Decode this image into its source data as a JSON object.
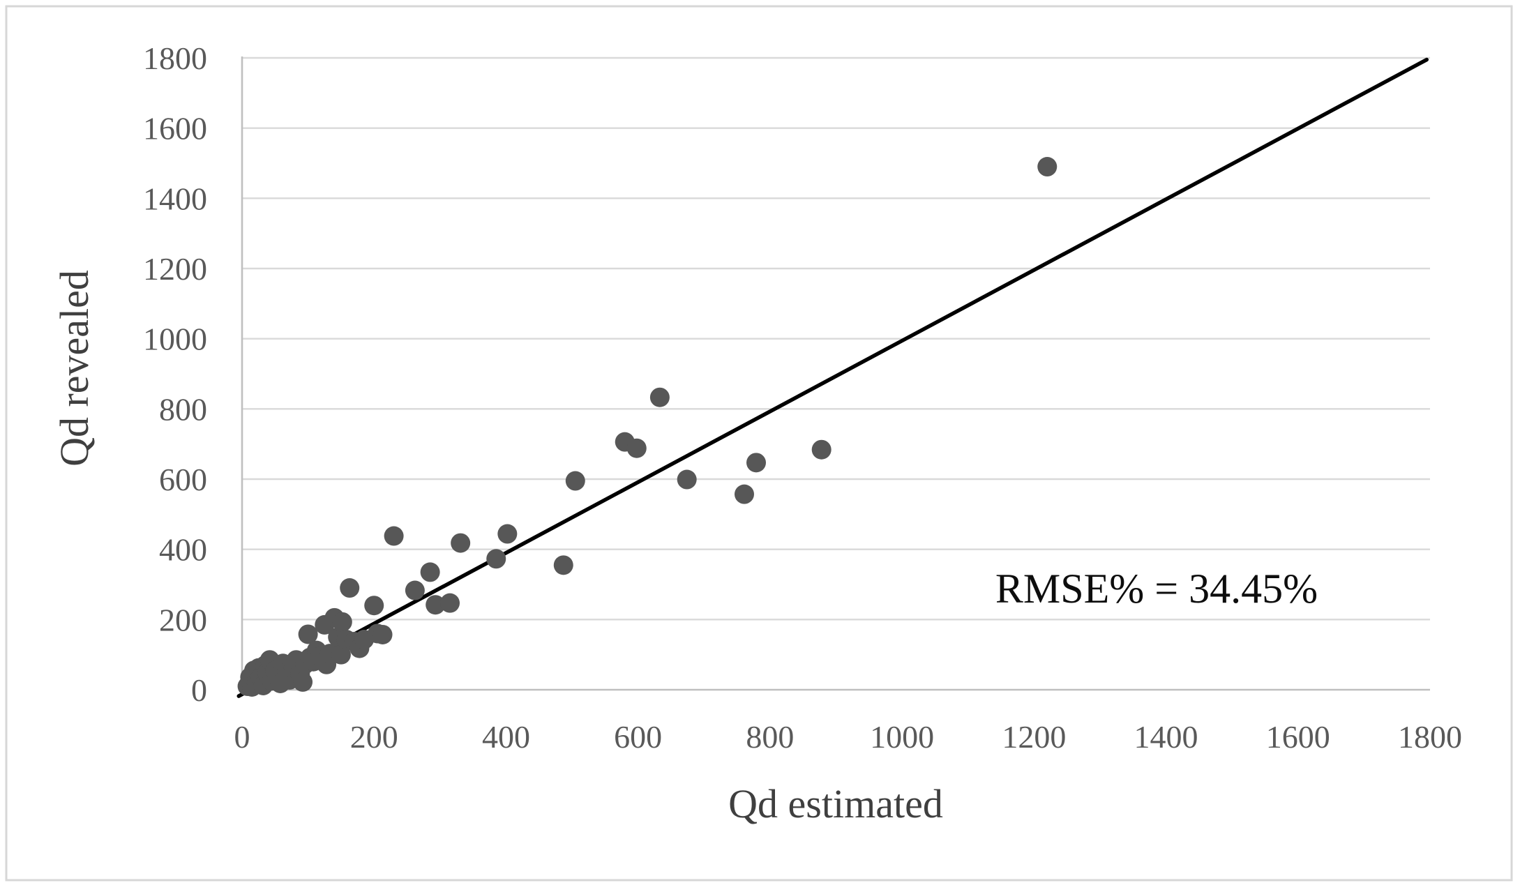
{
  "chart_data": {
    "type": "scatter",
    "title": "",
    "xlabel": "Qd estimated",
    "ylabel": "Qd revealed",
    "annotation": "RMSE% = 34.45%",
    "xlim": [
      0,
      1800
    ],
    "ylim": [
      0,
      1800
    ],
    "x_ticks": [
      0,
      200,
      400,
      600,
      800,
      1000,
      1200,
      1400,
      1600,
      1800
    ],
    "y_ticks": [
      0,
      200,
      400,
      600,
      800,
      1000,
      1200,
      1400,
      1600,
      1800
    ],
    "grid": "horizontal-only",
    "legend": "none",
    "colors": {
      "marker": "#575757",
      "identity_line": "#000000",
      "gridline": "#d9d9d9",
      "axis_line": "#bfbfbf",
      "tick_label": "#595959",
      "axis_title": "#3f3f3f",
      "figure_border": "#d7d7d7"
    },
    "series": [
      {
        "name": "Qd revealed vs Qd estimated",
        "type": "scatter",
        "points": [
          [
            8,
            10
          ],
          [
            12,
            36
          ],
          [
            15,
            8
          ],
          [
            18,
            55
          ],
          [
            22,
            20
          ],
          [
            25,
            62
          ],
          [
            28,
            35
          ],
          [
            32,
            12
          ],
          [
            35,
            70
          ],
          [
            38,
            48
          ],
          [
            42,
            85
          ],
          [
            45,
            25
          ],
          [
            50,
            55
          ],
          [
            55,
            38
          ],
          [
            58,
            18
          ],
          [
            62,
            75
          ],
          [
            68,
            50
          ],
          [
            72,
            28
          ],
          [
            78,
            62
          ],
          [
            82,
            85
          ],
          [
            88,
            45
          ],
          [
            92,
            22
          ],
          [
            95,
            72
          ],
          [
            100,
            158
          ],
          [
            103,
            92
          ],
          [
            108,
            80
          ],
          [
            113,
            112
          ],
          [
            118,
            95
          ],
          [
            125,
            185
          ],
          [
            128,
            72
          ],
          [
            133,
            103
          ],
          [
            140,
            205
          ],
          [
            145,
            150
          ],
          [
            150,
            100
          ],
          [
            152,
            193
          ],
          [
            158,
            143
          ],
          [
            163,
            290
          ],
          [
            170,
            137
          ],
          [
            178,
            118
          ],
          [
            185,
            143
          ],
          [
            200,
            240
          ],
          [
            205,
            160
          ],
          [
            213,
            157
          ],
          [
            230,
            438
          ],
          [
            262,
            283
          ],
          [
            285,
            335
          ],
          [
            293,
            242
          ],
          [
            315,
            247
          ],
          [
            331,
            418
          ],
          [
            385,
            373
          ],
          [
            402,
            444
          ],
          [
            487,
            355
          ],
          [
            505,
            595
          ],
          [
            580,
            706
          ],
          [
            598,
            688
          ],
          [
            633,
            833
          ],
          [
            674,
            599
          ],
          [
            761,
            557
          ],
          [
            779,
            647
          ],
          [
            878,
            684
          ],
          [
            1220,
            1490
          ]
        ]
      },
      {
        "name": "identity-line",
        "type": "line",
        "from": [
          -5,
          -18
        ],
        "to": [
          1795,
          1795
        ]
      }
    ]
  }
}
